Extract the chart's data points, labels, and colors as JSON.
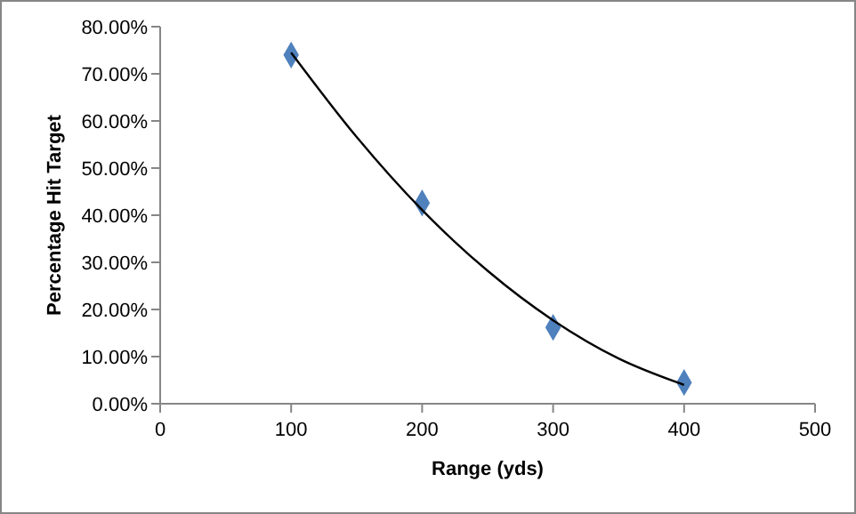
{
  "chart_data": {
    "type": "scatter",
    "xlabel": "Range (yds)",
    "ylabel": "Percentage Hit Target",
    "xlim": [
      0,
      500
    ],
    "xticks": [
      0,
      100,
      200,
      300,
      400,
      500
    ],
    "ylim": [
      0,
      80
    ],
    "yticks": [
      {
        "value": 0,
        "label": "0.00%"
      },
      {
        "value": 10,
        "label": "10.00%"
      },
      {
        "value": 20,
        "label": "20.00%"
      },
      {
        "value": 30,
        "label": "30.00%"
      },
      {
        "value": 40,
        "label": "40.00%"
      },
      {
        "value": 50,
        "label": "50.00%"
      },
      {
        "value": 60,
        "label": "60.00%"
      },
      {
        "value": 70,
        "label": "70.00%"
      },
      {
        "value": 80,
        "label": "80.00%"
      }
    ],
    "grid": false,
    "series": [
      {
        "color": "#4f81bd",
        "marker": "diamond",
        "x": [
          100,
          200,
          300,
          400
        ],
        "values": [
          74,
          42.6,
          16.2,
          4.5
        ]
      },
      {
        "type": "line",
        "color": "#000000",
        "marker": "none",
        "line_style": "solid",
        "x": [
          100,
          150,
          200,
          250,
          300,
          350,
          400
        ],
        "values": [
          74.5,
          56.6,
          41.1,
          28.2,
          17.7,
          9.6,
          4
        ]
      }
    ]
  }
}
